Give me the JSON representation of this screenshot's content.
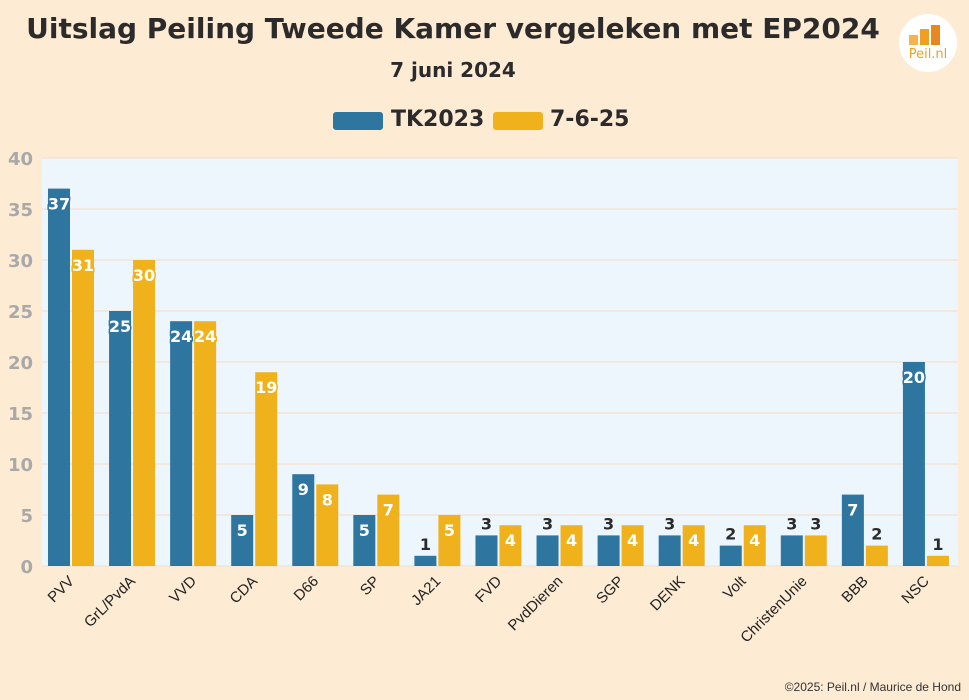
{
  "header": {
    "title": "Uitslag Peiling Tweede Kamer vergeleken met EP2024",
    "subtitle": "7 juni 2024"
  },
  "logo": {
    "text": "Peil.nl",
    "color": "#f0a020"
  },
  "credit": "©2025: Peil.nl / Maurice de Hond",
  "colors": {
    "background": "#fdebd3",
    "plot_background": "#eef6fd",
    "tk2023": "#2e75a0",
    "poll": "#f0b21c"
  },
  "chart_data": {
    "type": "bar",
    "categories": [
      "PVV",
      "GrL/PvdA",
      "VVD",
      "CDA",
      "D66",
      "SP",
      "JA21",
      "FVD",
      "PvdDieren",
      "SGP",
      "DENK",
      "Volt",
      "ChristenUnie",
      "BBB",
      "NSC"
    ],
    "series": [
      {
        "name": "TK2023",
        "values": [
          37,
          25,
          24,
          5,
          9,
          5,
          1,
          3,
          3,
          3,
          3,
          2,
          3,
          7,
          20
        ]
      },
      {
        "name": "7-6-25",
        "values": [
          31,
          30,
          24,
          19,
          8,
          7,
          5,
          4,
          4,
          4,
          4,
          4,
          3,
          2,
          1
        ]
      }
    ],
    "ylim": [
      0,
      40
    ],
    "yticks": [
      0,
      5,
      10,
      15,
      20,
      25,
      30,
      35,
      40
    ],
    "grid": true,
    "legend": "top-center",
    "xlabel": "",
    "ylabel": ""
  }
}
